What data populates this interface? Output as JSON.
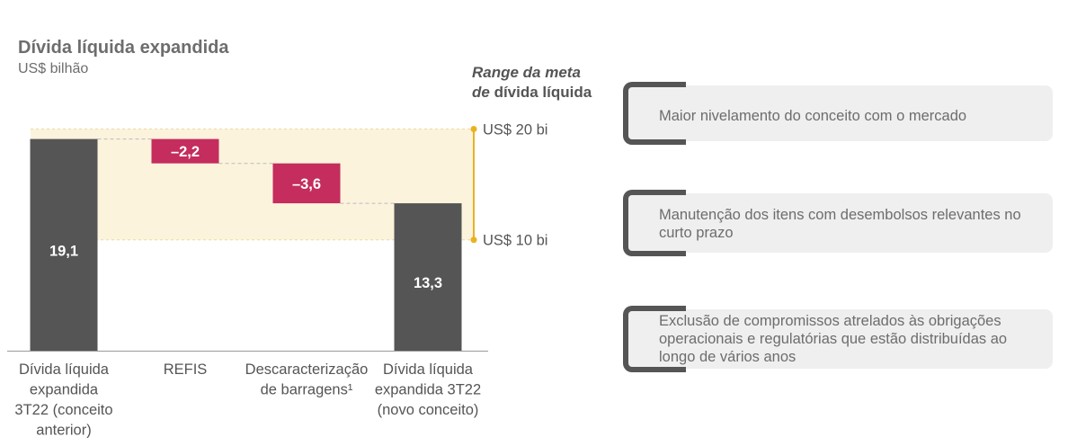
{
  "title": "Dívida líquida expandida",
  "subtitle": "US$ bilhão",
  "range_title": {
    "line1": "Range da meta",
    "line2_italic": "de",
    "line2_bold": "dívida líquida"
  },
  "chart_data": {
    "type": "bar",
    "subtype": "waterfall",
    "title": "Dívida líquida expandida",
    "subtitle": "US$ bilhão",
    "categories": [
      "Dívida líquida expandida 3T22 (conceito anterior)",
      "REFIS",
      "Descaracterização de barragens¹",
      "Dívida líquida expandida 3T22 (novo conceito)"
    ],
    "category_lines": [
      [
        "Dívida líquida",
        "expandida",
        "3T22 (conceito",
        "anterior)"
      ],
      [
        "REFIS"
      ],
      [
        "Descaracterização",
        "de barragens¹"
      ],
      [
        "Dívida líquida",
        "expandida 3T22",
        "(novo conceito)"
      ]
    ],
    "values": [
      19.1,
      -2.2,
      -3.6,
      13.3
    ],
    "value_labels": [
      "19,1",
      "–2,2",
      "–3,6",
      "13,3"
    ],
    "bar_kinds": [
      "total",
      "delta",
      "delta",
      "total"
    ],
    "target_range": {
      "low": 10,
      "high": 20,
      "low_label": "US$ 10 bi",
      "high_label": "US$ 20 bi"
    },
    "ylim": [
      0,
      21.5
    ],
    "grid": false,
    "colors": {
      "total": "#555555",
      "delta": "#c42d5e",
      "range_band": "#fbf3dc",
      "range_line": "#e8b321",
      "connector": "#bbbbbb"
    }
  },
  "cards": [
    {
      "text": "Maior nivelamento do conceito com o mercado"
    },
    {
      "text": "Manutenção dos itens com desembolsos relevantes no curto prazo"
    },
    {
      "text": "Exclusão de compromissos atrelados às obrigações operacionais e regulatórias que estão distribuídas ao longo de vários anos"
    }
  ]
}
